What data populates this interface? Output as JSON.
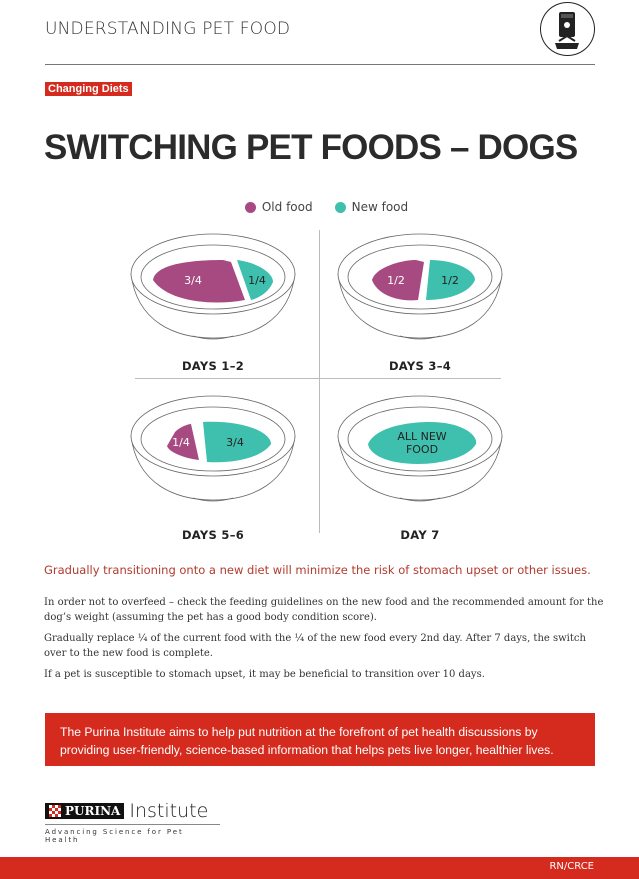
{
  "header": {
    "title": "UNDERSTANDING PET FOOD",
    "icon": "pet-food-bag-icon"
  },
  "tag": "Changing Diets",
  "title": "SWITCHING PET FOODS – DOGS",
  "colors": {
    "old": "#a84a82",
    "new": "#3fbfad",
    "accent": "#d52b1e"
  },
  "legend": {
    "old": "Old food",
    "new": "New food"
  },
  "bowls": [
    {
      "label": "DAYS 1–2",
      "old": "3/4",
      "new": "1/4",
      "old_fraction": 0.75,
      "new_fraction": 0.25
    },
    {
      "label": "DAYS 3–4",
      "old": "1/2",
      "new": "1/2",
      "old_fraction": 0.5,
      "new_fraction": 0.5
    },
    {
      "label": "DAYS 5–6",
      "old": "1/4",
      "new": "3/4",
      "old_fraction": 0.25,
      "new_fraction": 0.75
    },
    {
      "label": "DAY 7",
      "all": "ALL NEW FOOD",
      "old_fraction": 0,
      "new_fraction": 1
    }
  ],
  "intro": "Gradually transitioning onto a new diet will minimize the risk of stomach upset or other issues.",
  "paragraphs": [
    "In order not to overfeed – check the feeding guidelines on the new food and the recommended amount for the dog’s weight (assuming the pet has a good body condition score).",
    "Gradually replace ¼ of the current food with the ¼ of the new food every 2nd day. After 7 days, the switch over to the new food is complete.",
    "If a pet is susceptible to stomach upset, it may be beneficial to transition over 10 days."
  ],
  "banner": "The Purina Institute aims to help put nutrition at the forefront of pet health discussions by providing user-friendly, science-based information that helps pets live longer, healthier lives.",
  "logo": {
    "brand": "PURINA",
    "name": "Institute",
    "tagline": "Advancing Science for Pet Health"
  },
  "footer": {
    "code": "RN/CRCE"
  }
}
